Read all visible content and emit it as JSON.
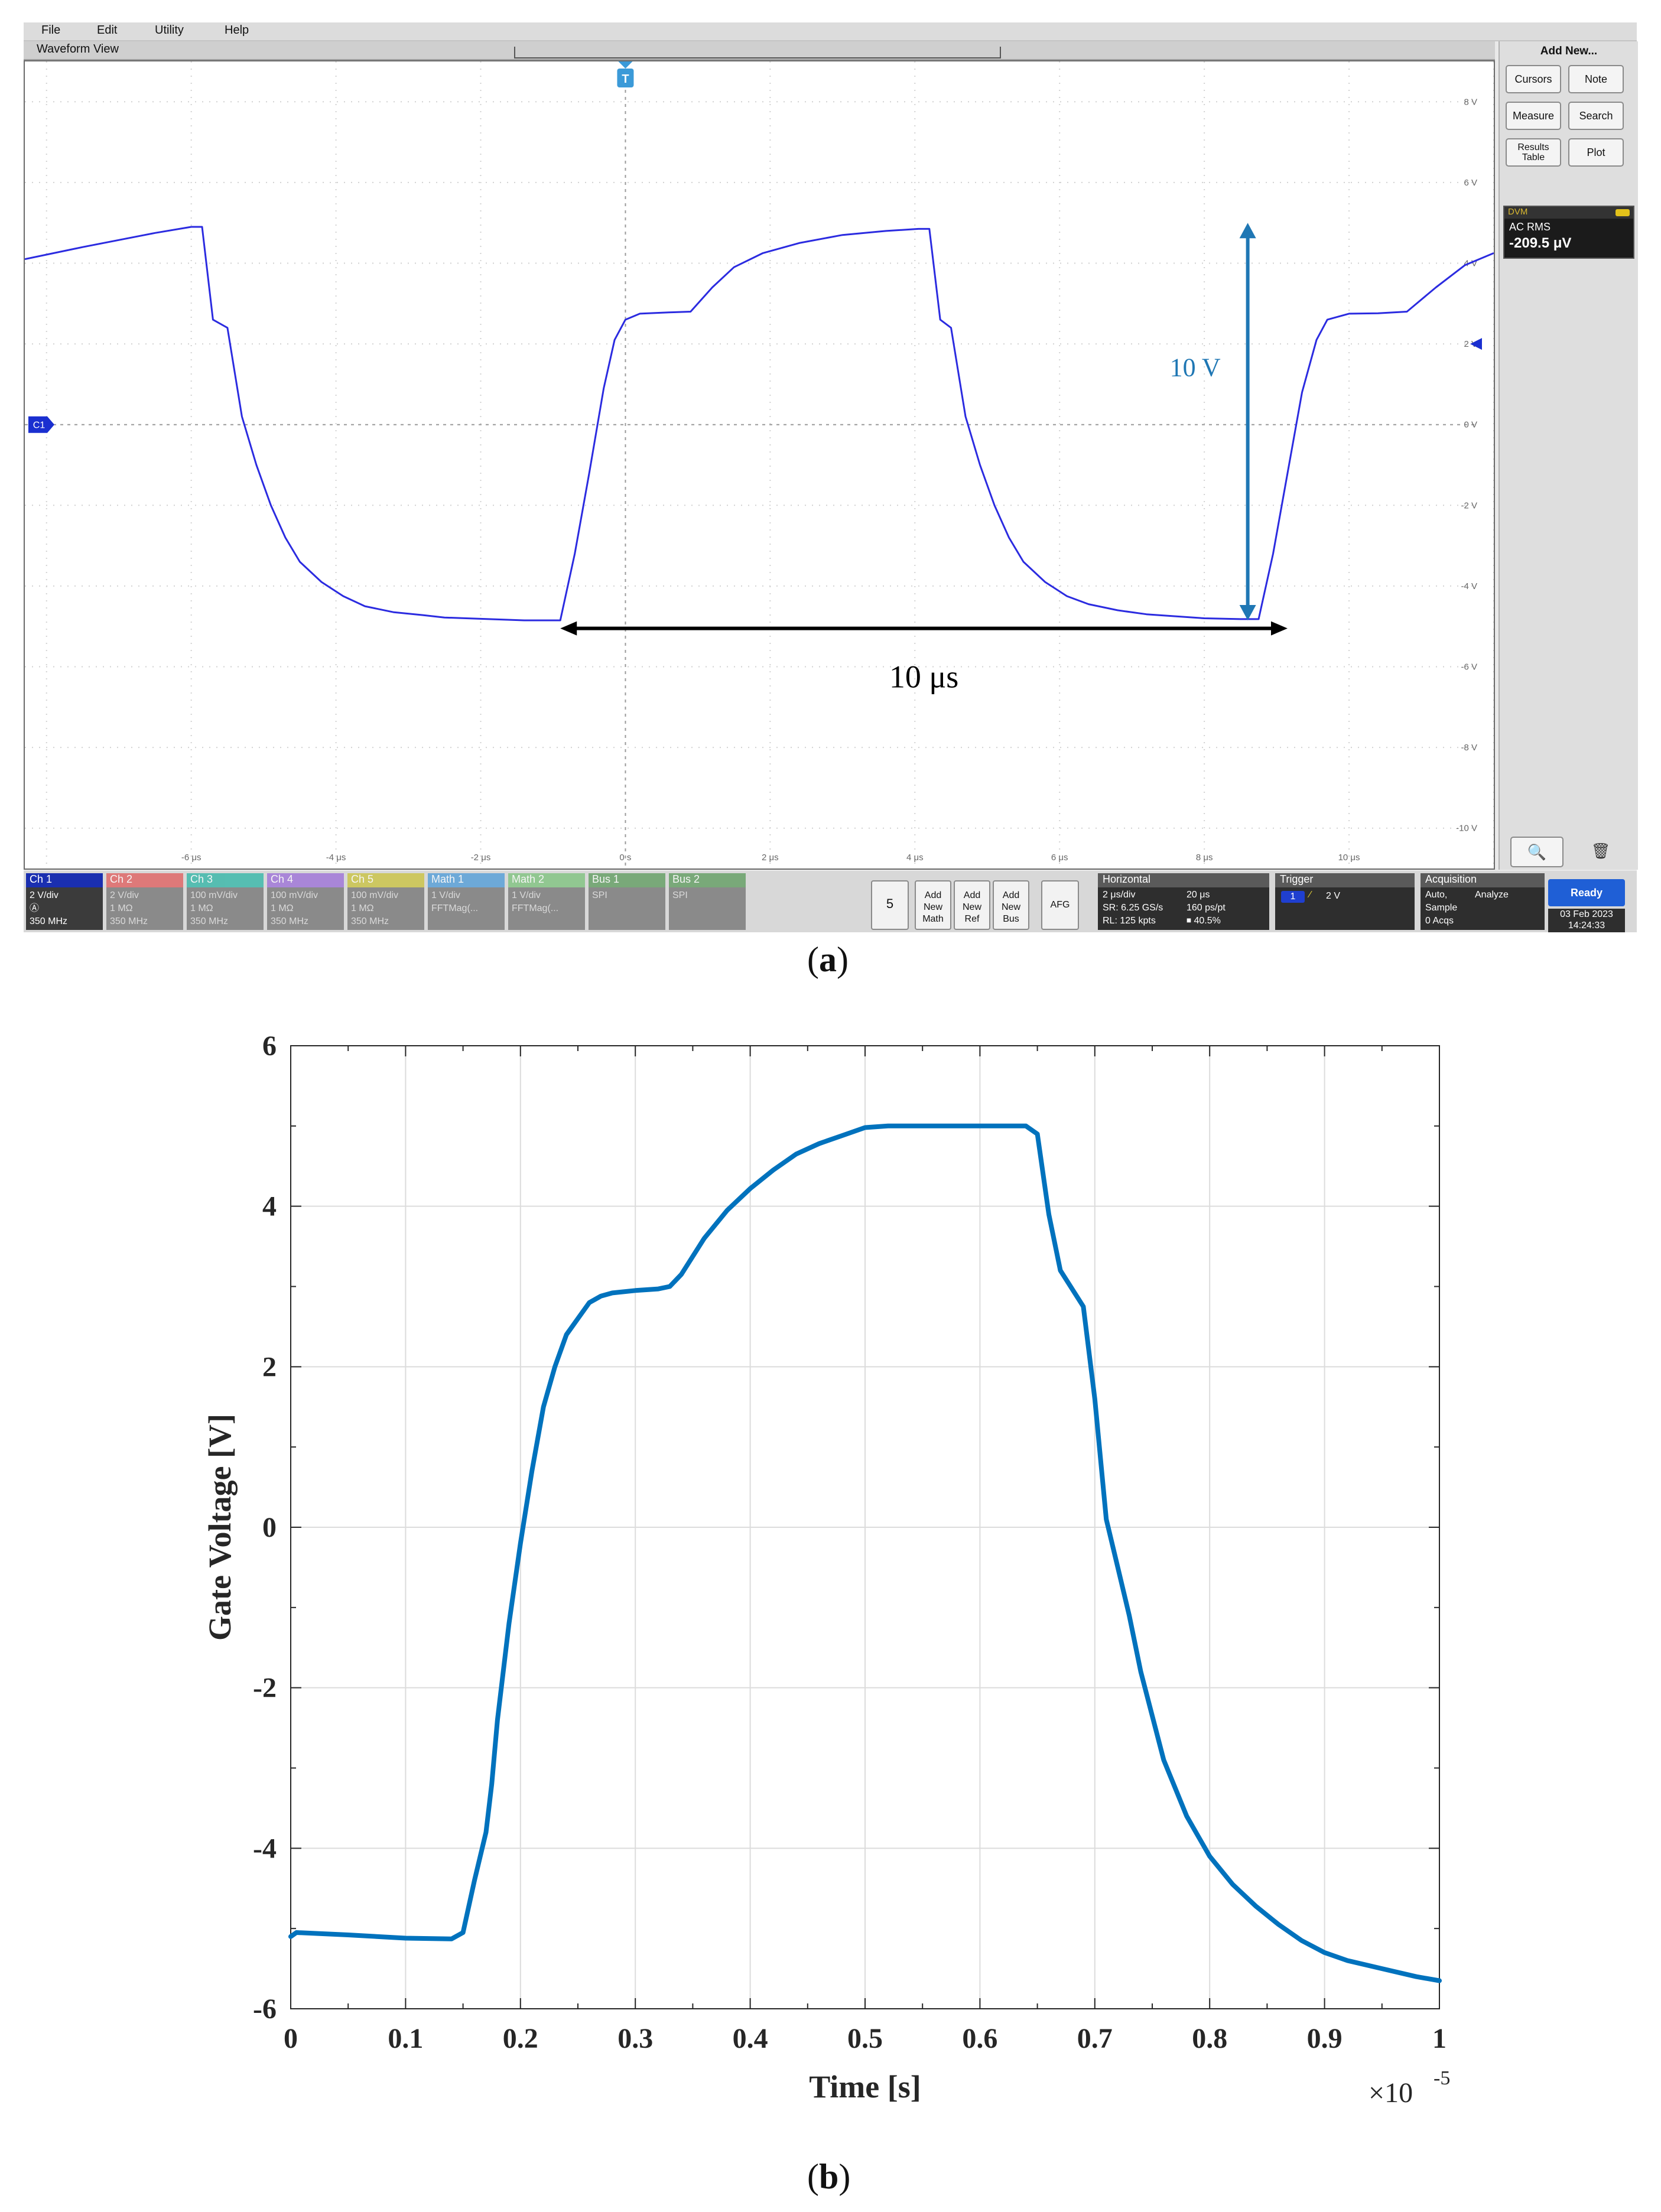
{
  "panel_a": {
    "menu": [
      "File",
      "Edit",
      "Utility",
      "Help"
    ],
    "view_title": "Waveform View",
    "trigger_marker": "T",
    "channel_marker": "C1",
    "annotations": {
      "voltage": "10 V",
      "time": "10 μs"
    },
    "colors": {
      "trace": "#2b2be0",
      "voltage_arrow": "#1f77b4",
      "time_arrow": "#000000"
    },
    "right_panel": {
      "title": "Add New...",
      "buttons": [
        "Cursors",
        "Note",
        "Measure",
        "Search",
        "Results Table",
        "Plot"
      ],
      "dvm": {
        "header": "DVM",
        "mode": "AC RMS",
        "value": "-209.5 μV"
      },
      "tools": [
        "zoom-icon",
        "trash-icon"
      ]
    },
    "channels": [
      {
        "name": "Ch 1",
        "lines": [
          "2 V/div",
          "Ⓐ",
          "350 MHz"
        ],
        "color": "#1a2fb0",
        "active": true
      },
      {
        "name": "Ch 2",
        "lines": [
          "2 V/div",
          "1 MΩ",
          "350 MHz"
        ],
        "color": "#e05a5a",
        "active": false
      },
      {
        "name": "Ch 3",
        "lines": [
          "100 mV/div",
          "1 MΩ",
          "350 MHz"
        ],
        "color": "#2bb5a5",
        "active": false
      },
      {
        "name": "Ch 4",
        "lines": [
          "100 mV/div",
          "1 MΩ",
          "350 MHz"
        ],
        "color": "#9a6bd8",
        "active": false
      },
      {
        "name": "Ch 5",
        "lines": [
          "100 mV/div",
          "1 MΩ",
          "350 MHz"
        ],
        "color": "#c9c23a",
        "active": false
      },
      {
        "name": "Math 1",
        "lines": [
          "1 V/div",
          "FFTMag(..."
        ],
        "color": "#4a9ad8",
        "active": false
      },
      {
        "name": "Math 2",
        "lines": [
          "1 V/div",
          "FFTMag(..."
        ],
        "color": "#7ac27a",
        "active": false
      },
      {
        "name": "Bus 1",
        "lines": [
          "SPI"
        ],
        "color": "#5a9a5a",
        "active": false
      },
      {
        "name": "Bus 2",
        "lines": [
          "SPI"
        ],
        "color": "#5a9a5a",
        "active": false
      }
    ],
    "bottom_buttons": {
      "count": "5",
      "add_math": "Add New Math",
      "add_ref": "Add New Ref",
      "add_bus": "Add New Bus",
      "afg": "AFG"
    },
    "horizontal": {
      "title": "Horizontal",
      "lines": [
        "2 μs/div",
        "20 μs",
        "SR: 6.25 GS/s",
        "160 ps/pt",
        "RL: 125 kpts",
        "⏹ 40.5%"
      ]
    },
    "trigger": {
      "title": "Trigger",
      "source": "1",
      "level": "2 V"
    },
    "acquisition": {
      "title": "Acquisition",
      "lines": [
        "Auto,",
        "Analyze",
        "Sample",
        "0 Acqs"
      ]
    },
    "status": "Ready",
    "date": "03 Feb 2023",
    "time": "14:24:33",
    "chart_data": {
      "type": "line",
      "xlabel": "",
      "ylabel": "",
      "x_unit": "μs",
      "xlim": [
        -8.3,
        12
      ],
      "ylim": [
        -11,
        9
      ],
      "x_ticks": [
        "-6 μs",
        "-4 μs",
        "-2 μs",
        "0 s",
        "2 μs",
        "4 μs",
        "6 μs",
        "8 μs",
        "10 μs"
      ],
      "x_tick_values": [
        -6,
        -4,
        -2,
        0,
        2,
        4,
        6,
        8,
        10
      ],
      "y_ticks": [
        "8 V",
        "6 V",
        "4 V",
        "2 V",
        "0 V",
        "-2 V",
        "-4 V",
        "-6 V",
        "-8 V",
        "-10 V"
      ],
      "y_tick_values": [
        8,
        6,
        4,
        2,
        0,
        -2,
        -4,
        -6,
        -8,
        -10
      ],
      "grid": true,
      "series": [
        {
          "x": [
            -8.3,
            -7.5,
            -6.5,
            -6.0,
            -5.85,
            -5.7,
            -5.5,
            -5.3,
            -5.1,
            -4.9,
            -4.7,
            -4.5,
            -4.2,
            -3.9,
            -3.6,
            -3.2,
            -2.8,
            -2.5,
            -2.2,
            -1.4,
            -0.9,
            -0.7,
            -0.5,
            -0.3,
            -0.15,
            0,
            0.2,
            0.6,
            0.9,
            1.2,
            1.5,
            1.9,
            2.4,
            3.0,
            3.6,
            4.05,
            4.2,
            4.35,
            4.5,
            4.7,
            4.9,
            5.1,
            5.3,
            5.5,
            5.8,
            6.1,
            6.4,
            6.8,
            7.2,
            7.6,
            8.0,
            8.5,
            8.75,
            8.95,
            9.15,
            9.35,
            9.55,
            9.7,
            10.0,
            10.4,
            10.8,
            11.2,
            11.6,
            12.0
          ],
          "y": [
            4.1,
            4.4,
            4.75,
            4.9,
            4.9,
            2.6,
            2.4,
            0.2,
            -1.0,
            -2.0,
            -2.8,
            -3.4,
            -3.9,
            -4.25,
            -4.5,
            -4.65,
            -4.72,
            -4.78,
            -4.8,
            -4.85,
            -4.85,
            -3.2,
            -1.2,
            0.9,
            2.1,
            2.6,
            2.75,
            2.78,
            2.8,
            3.4,
            3.9,
            4.25,
            4.5,
            4.7,
            4.8,
            4.85,
            4.85,
            2.6,
            2.4,
            0.2,
            -1.0,
            -2.0,
            -2.8,
            -3.4,
            -3.9,
            -4.25,
            -4.45,
            -4.6,
            -4.7,
            -4.75,
            -4.8,
            -4.82,
            -4.82,
            -3.2,
            -1.2,
            0.8,
            2.1,
            2.6,
            2.75,
            2.76,
            2.8,
            3.4,
            3.95,
            4.25
          ]
        }
      ]
    }
  },
  "captions": {
    "a": "a",
    "b": "b"
  },
  "panel_b": {
    "chart_data": {
      "type": "line",
      "xlabel": "Time [s]",
      "ylabel": "Gate Voltage [V]",
      "xlim": [
        0,
        1
      ],
      "ylim": [
        -6,
        6
      ],
      "x_multiplier": "×10",
      "x_multiplier_exp": "-5",
      "x_ticks": [
        "0",
        "0.1",
        "0.2",
        "0.3",
        "0.4",
        "0.5",
        "0.6",
        "0.7",
        "0.8",
        "0.9",
        "1"
      ],
      "x_tick_values": [
        0,
        0.1,
        0.2,
        0.3,
        0.4,
        0.5,
        0.6,
        0.7,
        0.8,
        0.9,
        1
      ],
      "y_ticks": [
        "-6",
        "-4",
        "-2",
        "0",
        "2",
        "4",
        "6"
      ],
      "y_tick_values": [
        -6,
        -4,
        -2,
        0,
        2,
        4,
        6
      ],
      "x_minor_ticks": [
        0.05,
        0.15,
        0.25,
        0.35,
        0.45,
        0.55,
        0.65,
        0.75,
        0.85,
        0.95
      ],
      "y_minor_ticks": [
        -5,
        -3,
        -1,
        1,
        3,
        5
      ],
      "grid": true,
      "color": "#0072bd",
      "series": [
        {
          "x": [
            0,
            0.005,
            0.05,
            0.1,
            0.14,
            0.15,
            0.16,
            0.17,
            0.175,
            0.18,
            0.19,
            0.2,
            0.21,
            0.22,
            0.23,
            0.24,
            0.25,
            0.26,
            0.27,
            0.28,
            0.3,
            0.32,
            0.33,
            0.34,
            0.36,
            0.38,
            0.4,
            0.42,
            0.44,
            0.46,
            0.48,
            0.5,
            0.52,
            0.55,
            0.6,
            0.64,
            0.65,
            0.66,
            0.67,
            0.69,
            0.7,
            0.71,
            0.72,
            0.73,
            0.74,
            0.76,
            0.78,
            0.8,
            0.82,
            0.84,
            0.86,
            0.88,
            0.9,
            0.92,
            0.95,
            0.98,
            1.0
          ],
          "y": [
            -5.1,
            -5.05,
            -5.08,
            -5.12,
            -5.13,
            -5.05,
            -4.4,
            -3.8,
            -3.2,
            -2.4,
            -1.2,
            -0.2,
            0.7,
            1.5,
            2.0,
            2.4,
            2.6,
            2.8,
            2.88,
            2.92,
            2.95,
            2.97,
            3.0,
            3.15,
            3.6,
            3.95,
            4.22,
            4.45,
            4.65,
            4.78,
            4.88,
            4.98,
            5.0,
            5.0,
            5.0,
            5.0,
            4.9,
            3.9,
            3.2,
            2.75,
            1.6,
            0.1,
            -0.5,
            -1.1,
            -1.8,
            -2.9,
            -3.6,
            -4.1,
            -4.45,
            -4.72,
            -4.95,
            -5.15,
            -5.3,
            -5.4,
            -5.5,
            -5.6,
            -5.65
          ]
        }
      ]
    }
  }
}
